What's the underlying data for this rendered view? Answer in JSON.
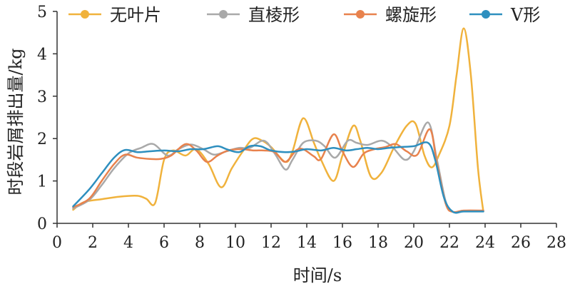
{
  "chart_data": {
    "type": "line",
    "title": "",
    "xlabel": "时间/s",
    "ylabel": "时段岩屑排出量/kg",
    "xlim": [
      0,
      28
    ],
    "ylim": [
      0,
      5
    ],
    "x_ticks": [
      0,
      2,
      4,
      6,
      8,
      10,
      12,
      14,
      16,
      18,
      20,
      22,
      24,
      26,
      28
    ],
    "y_ticks": [
      0,
      1,
      2,
      3,
      4,
      5
    ],
    "grid": false,
    "legend_position": "top",
    "series": [
      {
        "name": "无叶片",
        "color": "#f0b23c",
        "points": [
          [
            0.9,
            0.32
          ],
          [
            1.5,
            0.5
          ],
          [
            2.5,
            0.57
          ],
          [
            3.5,
            0.63
          ],
          [
            4.5,
            0.65
          ],
          [
            5.0,
            0.58
          ],
          [
            5.5,
            0.48
          ],
          [
            6.0,
            1.5
          ],
          [
            6.5,
            1.72
          ],
          [
            7.2,
            1.6
          ],
          [
            7.8,
            1.75
          ],
          [
            8.5,
            1.4
          ],
          [
            9.2,
            0.85
          ],
          [
            9.8,
            1.3
          ],
          [
            10.5,
            1.75
          ],
          [
            11.0,
            2.0
          ],
          [
            11.5,
            1.95
          ],
          [
            12.0,
            1.8
          ],
          [
            12.8,
            1.45
          ],
          [
            13.2,
            1.7
          ],
          [
            13.8,
            2.48
          ],
          [
            14.4,
            1.9
          ],
          [
            14.8,
            1.5
          ],
          [
            15.5,
            1.0
          ],
          [
            16.0,
            1.6
          ],
          [
            16.6,
            2.3
          ],
          [
            17.0,
            1.95
          ],
          [
            17.6,
            1.1
          ],
          [
            18.2,
            1.2
          ],
          [
            18.9,
            1.8
          ],
          [
            19.6,
            2.3
          ],
          [
            20.1,
            2.35
          ],
          [
            20.6,
            1.6
          ],
          [
            21.0,
            1.32
          ],
          [
            21.4,
            1.6
          ],
          [
            22.0,
            2.3
          ],
          [
            22.4,
            3.5
          ],
          [
            22.8,
            4.6
          ],
          [
            23.2,
            3.5
          ],
          [
            23.6,
            1.3
          ],
          [
            23.9,
            0.28
          ]
        ]
      },
      {
        "name": "直棱形",
        "color": "#a9a9a9",
        "points": [
          [
            0.9,
            0.35
          ],
          [
            1.8,
            0.55
          ],
          [
            2.5,
            0.9
          ],
          [
            3.2,
            1.3
          ],
          [
            4.0,
            1.65
          ],
          [
            4.7,
            1.78
          ],
          [
            5.4,
            1.87
          ],
          [
            6.2,
            1.6
          ],
          [
            6.8,
            1.75
          ],
          [
            7.5,
            1.86
          ],
          [
            8.2,
            1.75
          ],
          [
            8.8,
            1.62
          ],
          [
            9.5,
            1.7
          ],
          [
            10.2,
            1.78
          ],
          [
            10.8,
            1.78
          ],
          [
            11.6,
            1.95
          ],
          [
            12.2,
            1.65
          ],
          [
            12.8,
            1.27
          ],
          [
            13.2,
            1.5
          ],
          [
            13.8,
            1.9
          ],
          [
            14.5,
            1.95
          ],
          [
            15.0,
            1.82
          ],
          [
            15.6,
            1.55
          ],
          [
            16.3,
            1.95
          ],
          [
            16.8,
            1.9
          ],
          [
            17.4,
            1.85
          ],
          [
            18.2,
            1.95
          ],
          [
            18.8,
            1.8
          ],
          [
            19.5,
            1.5
          ],
          [
            20.0,
            1.7
          ],
          [
            20.8,
            2.38
          ],
          [
            21.3,
            1.5
          ],
          [
            21.8,
            0.5
          ],
          [
            22.2,
            0.27
          ],
          [
            22.8,
            0.3
          ],
          [
            23.9,
            0.3
          ]
        ]
      },
      {
        "name": "螺旋形",
        "color": "#e8824d",
        "points": [
          [
            0.9,
            0.38
          ],
          [
            1.8,
            0.58
          ],
          [
            2.5,
            1.0
          ],
          [
            3.2,
            1.4
          ],
          [
            3.8,
            1.62
          ],
          [
            4.5,
            1.55
          ],
          [
            5.2,
            1.52
          ],
          [
            5.8,
            1.52
          ],
          [
            6.4,
            1.6
          ],
          [
            7.2,
            1.87
          ],
          [
            7.8,
            1.72
          ],
          [
            8.4,
            1.45
          ],
          [
            9.0,
            1.6
          ],
          [
            9.6,
            1.72
          ],
          [
            10.3,
            1.75
          ],
          [
            11.0,
            1.72
          ],
          [
            11.6,
            1.72
          ],
          [
            12.2,
            1.68
          ],
          [
            12.8,
            1.45
          ],
          [
            13.4,
            1.72
          ],
          [
            13.8,
            1.75
          ],
          [
            14.4,
            1.58
          ],
          [
            14.8,
            1.52
          ],
          [
            15.5,
            2.1
          ],
          [
            16.0,
            1.7
          ],
          [
            16.6,
            1.33
          ],
          [
            17.2,
            1.65
          ],
          [
            17.8,
            1.75
          ],
          [
            18.4,
            1.8
          ],
          [
            19.0,
            1.87
          ],
          [
            19.6,
            1.7
          ],
          [
            20.2,
            1.62
          ],
          [
            20.9,
            2.22
          ],
          [
            21.3,
            1.4
          ],
          [
            21.8,
            0.45
          ],
          [
            22.2,
            0.27
          ],
          [
            22.8,
            0.3
          ],
          [
            23.9,
            0.3
          ]
        ]
      },
      {
        "name": "V形",
        "color": "#2e8fbf",
        "points": [
          [
            0.9,
            0.4
          ],
          [
            1.8,
            0.8
          ],
          [
            2.5,
            1.18
          ],
          [
            3.2,
            1.55
          ],
          [
            3.8,
            1.73
          ],
          [
            4.5,
            1.68
          ],
          [
            5.2,
            1.7
          ],
          [
            6.0,
            1.72
          ],
          [
            6.8,
            1.7
          ],
          [
            7.5,
            1.75
          ],
          [
            8.2,
            1.75
          ],
          [
            9.0,
            1.82
          ],
          [
            9.5,
            1.75
          ],
          [
            10.2,
            1.68
          ],
          [
            10.8,
            1.82
          ],
          [
            11.4,
            1.82
          ],
          [
            12.0,
            1.72
          ],
          [
            12.8,
            1.68
          ],
          [
            13.4,
            1.7
          ],
          [
            14.0,
            1.75
          ],
          [
            14.8,
            1.72
          ],
          [
            15.5,
            1.78
          ],
          [
            16.2,
            1.72
          ],
          [
            16.8,
            1.75
          ],
          [
            17.4,
            1.78
          ],
          [
            18.0,
            1.75
          ],
          [
            18.6,
            1.78
          ],
          [
            19.2,
            1.8
          ],
          [
            20.0,
            1.82
          ],
          [
            20.8,
            1.9
          ],
          [
            21.2,
            1.5
          ],
          [
            21.7,
            0.6
          ],
          [
            22.2,
            0.27
          ],
          [
            22.8,
            0.28
          ],
          [
            23.9,
            0.28
          ]
        ]
      }
    ]
  }
}
